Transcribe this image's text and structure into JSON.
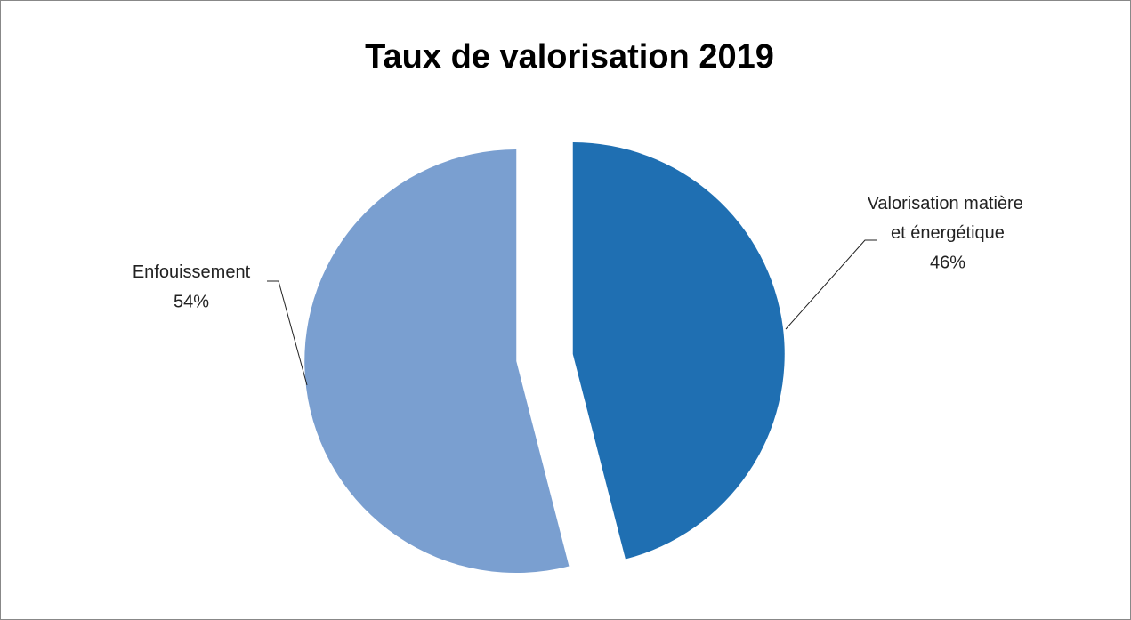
{
  "chart_data": {
    "type": "pie",
    "title": "Taux de valorisation 2019",
    "categories": [
      "Valorisation matière et énergétique",
      "Enfouissement"
    ],
    "values": [
      46,
      54
    ],
    "value_labels": [
      "46%",
      "54%"
    ],
    "colors": [
      "#1f6fb2",
      "#7a9fd0"
    ],
    "exploded": true
  }
}
